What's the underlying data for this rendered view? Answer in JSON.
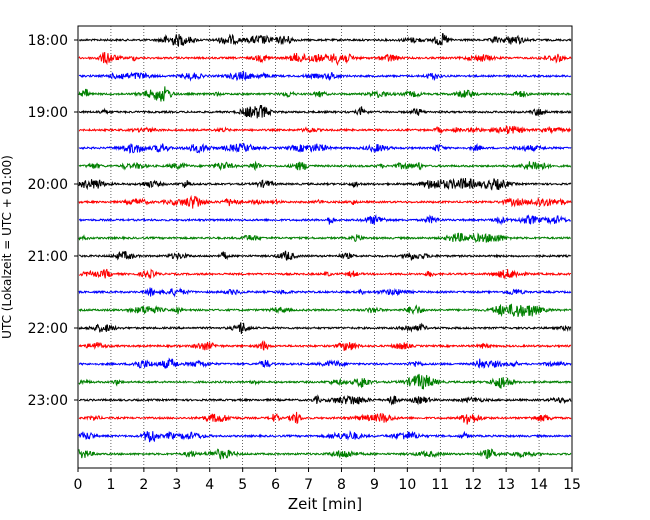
{
  "chart_data": {
    "type": "line",
    "title": "",
    "xlabel": "Zeit  [min]",
    "ylabel": "UTC (Lokalzeit = UTC + 01:00)",
    "xlim": [
      0,
      15
    ],
    "x_ticks": [
      "0",
      "1",
      "2",
      "3",
      "4",
      "5",
      "6",
      "7",
      "8",
      "9",
      "10",
      "11",
      "12",
      "13",
      "14",
      "15"
    ],
    "y_ticks": [
      "18:00",
      "19:00",
      "20:00",
      "21:00",
      "22:00",
      "23:00"
    ],
    "grid": "vertical dotted",
    "legend": "none",
    "trace_interval_minutes": 15,
    "trace_start": "18:00",
    "trace_end": "23:45",
    "color_cycle": [
      "#000000",
      "#ff0000",
      "#0000ff",
      "#008000"
    ],
    "series": [
      {
        "start": "18:00",
        "color": "#000000"
      },
      {
        "start": "18:15",
        "color": "#ff0000"
      },
      {
        "start": "18:30",
        "color": "#0000ff"
      },
      {
        "start": "18:45",
        "color": "#008000"
      },
      {
        "start": "19:00",
        "color": "#000000"
      },
      {
        "start": "19:15",
        "color": "#ff0000"
      },
      {
        "start": "19:30",
        "color": "#0000ff"
      },
      {
        "start": "19:45",
        "color": "#008000"
      },
      {
        "start": "20:00",
        "color": "#000000"
      },
      {
        "start": "20:15",
        "color": "#ff0000"
      },
      {
        "start": "20:30",
        "color": "#0000ff"
      },
      {
        "start": "20:45",
        "color": "#008000"
      },
      {
        "start": "21:00",
        "color": "#000000"
      },
      {
        "start": "21:15",
        "color": "#ff0000"
      },
      {
        "start": "21:30",
        "color": "#0000ff"
      },
      {
        "start": "21:45",
        "color": "#008000"
      },
      {
        "start": "22:00",
        "color": "#000000"
      },
      {
        "start": "22:15",
        "color": "#ff0000"
      },
      {
        "start": "22:30",
        "color": "#0000ff"
      },
      {
        "start": "22:45",
        "color": "#008000"
      },
      {
        "start": "23:00",
        "color": "#000000"
      },
      {
        "start": "23:15",
        "color": "#ff0000"
      },
      {
        "start": "23:30",
        "color": "#0000ff"
      },
      {
        "start": "23:45",
        "color": "#008000"
      }
    ]
  }
}
